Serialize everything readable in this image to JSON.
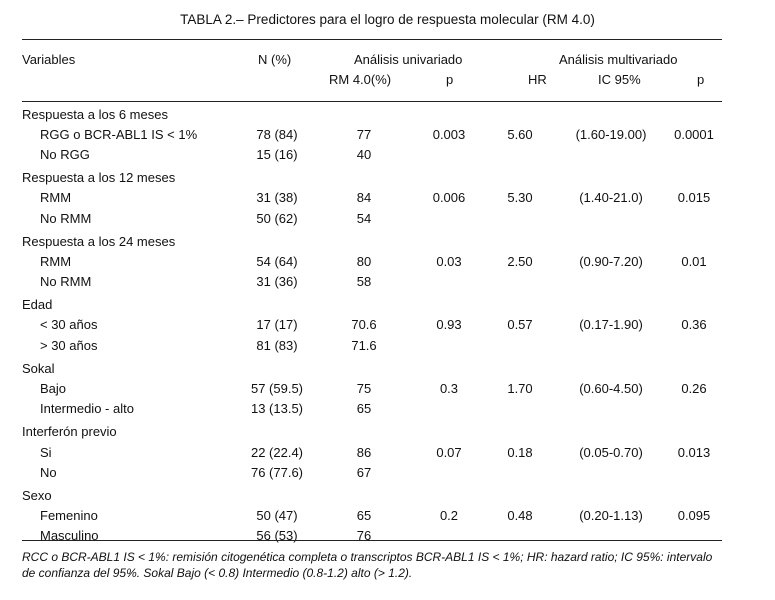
{
  "title": "TABLA 2.– Predictores para el logro de respuesta molecular (RM 4.0)",
  "headers": {
    "variables": "Variables",
    "n_pct": "N (%)",
    "univariate": "Análisis univariado",
    "multivariate": "Análisis multivariado",
    "rm": "RM 4.0(%)",
    "p_uni": "p",
    "hr": "HR",
    "ic": "IC 95%",
    "p_multi": "p"
  },
  "rows": [
    {
      "variable": "Respuesta a los 6 meses",
      "section": true
    },
    {
      "variable": "RGG o BCR-ABL1 IS < 1%",
      "n": "78 (84)",
      "rm": "77",
      "p": "0.003",
      "hr": "5.60",
      "ic": "(1.60-19.00)",
      "p2": "0.0001"
    },
    {
      "variable": "No RGG",
      "n": "15 (16)",
      "rm": "40"
    },
    {
      "variable": "Respuesta a los 12 meses",
      "section": true
    },
    {
      "variable": "RMM",
      "n": "31 (38)",
      "rm": "84",
      "p": "0.006",
      "hr": "5.30",
      "ic": "(1.40-21.0)",
      "p2": "0.015"
    },
    {
      "variable": "No RMM",
      "n": "50 (62)",
      "rm": "54"
    },
    {
      "variable": "Respuesta a los 24 meses",
      "section": true
    },
    {
      "variable": "RMM",
      "n": "54 (64)",
      "rm": "80",
      "p": "0.03",
      "hr": "2.50",
      "ic": "(0.90-7.20)",
      "p2": "0.01"
    },
    {
      "variable": "No RMM",
      "n": "31 (36)",
      "rm": "58"
    },
    {
      "variable": "Edad",
      "section": true
    },
    {
      "variable": "< 30 años",
      "n": "17 (17)",
      "rm": "70.6",
      "p": "0.93",
      "hr": "0.57",
      "ic": "(0.17-1.90)",
      "p2": "0.36"
    },
    {
      "variable": "> 30 años",
      "n": "81 (83)",
      "rm": "71.6"
    },
    {
      "variable": "Sokal",
      "section": true
    },
    {
      "variable": "Bajo",
      "n": "57 (59.5)",
      "rm": "75",
      "p": "0.3",
      "hr": "1.70",
      "ic": "(0.60-4.50)",
      "p2": "0.26"
    },
    {
      "variable": "Intermedio - alto",
      "n": "13 (13.5)",
      "rm": "65"
    },
    {
      "variable": "Interferón previo",
      "section": true
    },
    {
      "variable": "Si",
      "n": "22 (22.4)",
      "rm": "86",
      "p": "0.07",
      "hr": "0.18",
      "ic": "(0.05-0.70)",
      "p2": "0.013"
    },
    {
      "variable": "No",
      "n": "76 (77.6)",
      "rm": "67"
    },
    {
      "variable": "Sexo",
      "section": true
    },
    {
      "variable": "Femenino",
      "n": "50 (47)",
      "rm": "65",
      "p": "0.2",
      "hr": "0.48",
      "ic": "(0.20-1.13)",
      "p2": "0.095"
    },
    {
      "variable": "Masculino",
      "n": "56 (53)",
      "rm": "76"
    }
  ],
  "footnote": "RCC o BCR-ABL1 IS < 1%: remisión citogenética completa o transcriptos BCR-ABL1 IS < 1%; HR: hazard ratio; IC 95%: intervalo de confianza del 95%. Sokal Bajo (< 0.8) Intermedio (0.8-1.2) alto (> 1.2)."
}
